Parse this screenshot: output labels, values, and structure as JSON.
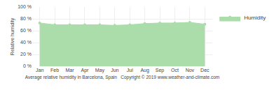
{
  "chart_data": {
    "type": "area",
    "categories": [
      "Jan",
      "Feb",
      "Mar",
      "Apr",
      "May",
      "Jun",
      "Jul",
      "Aug",
      "Sep",
      "Oct",
      "Nov",
      "Dec"
    ],
    "series": [
      {
        "name": "Humidity",
        "color": "#aaddaa",
        "values": [
          73,
          70,
          70,
          70,
          70,
          69,
          70,
          72,
          73,
          73,
          74,
          71
        ]
      }
    ],
    "ylabel": "Relative humidity",
    "xlabel": "Average relative humidity in Barcelona, Spain   Copyright © 2019 www.weather-and-climate.com",
    "ylim": [
      0,
      100
    ],
    "yticks": [
      {
        "value": 0,
        "label": "0 %"
      },
      {
        "value": 20,
        "label": "20 %"
      },
      {
        "value": 40,
        "label": "40 %"
      },
      {
        "value": 60,
        "label": "60 %"
      },
      {
        "value": 80,
        "label": "80 %"
      },
      {
        "value": 100,
        "label": "100 %"
      }
    ],
    "grid": true,
    "legend": "right",
    "marker": "circle"
  }
}
